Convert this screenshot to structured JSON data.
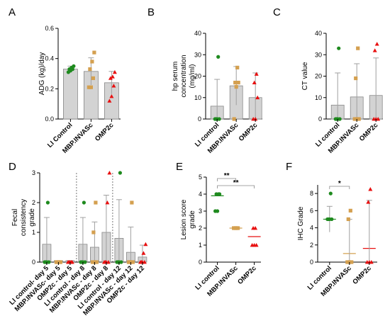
{
  "colors": {
    "green": "#1e8a1e",
    "orange": "#d4a050",
    "red": "#e81010",
    "bar": "#d3d3d3",
    "axis": "#000000",
    "error": "#a0a0a0"
  },
  "chart_data": [
    {
      "panel": "A",
      "type": "bar",
      "ylabel": "ADG (kg)/day",
      "ylim": [
        0,
        0.6
      ],
      "yticks": [
        0,
        0.2,
        0.4,
        0.6
      ],
      "categories": [
        "LI Control",
        "MBP.INVASc",
        "OMP2c"
      ],
      "bars": [
        {
          "mean": 0.33,
          "sd": 0.02
        },
        {
          "mean": 0.315,
          "sd": 0.09
        },
        {
          "mean": 0.24,
          "sd": 0.075
        }
      ],
      "points": [
        [
          0.31,
          0.32,
          0.33,
          0.33,
          0.34,
          0.35
        ],
        [
          0.21,
          0.21,
          0.27,
          0.33,
          0.38,
          0.44
        ],
        [
          0.12,
          0.15,
          0.22,
          0.27,
          0.28,
          0.31
        ]
      ]
    },
    {
      "panel": "B",
      "type": "bar",
      "ylabel": "hp serum concentration (mg/ml)",
      "ylim": [
        0,
        40
      ],
      "yticks": [
        0,
        10,
        20,
        30,
        40
      ],
      "categories": [
        "LI control",
        "MBP.INVASc",
        "OMP2c"
      ],
      "bars": [
        {
          "mean": 6,
          "sd": 12.5
        },
        {
          "mean": 15.5,
          "sd": 9
        },
        {
          "mean": 10,
          "sd": 11.5
        }
      ],
      "points": [
        [
          0,
          0,
          0,
          0,
          29
        ],
        [
          0,
          15,
          17,
          17,
          24
        ],
        [
          0,
          0,
          10,
          17,
          21
        ]
      ]
    },
    {
      "panel": "C",
      "type": "bar",
      "ylabel": "CT value",
      "ylim": [
        0,
        40
      ],
      "yticks": [
        0,
        10,
        20,
        30,
        40
      ],
      "categories": [
        "LI control",
        "MBP.INVASc",
        "OMP2c"
      ],
      "bars": [
        {
          "mean": 6.5,
          "sd": 15
        },
        {
          "mean": 10.3,
          "sd": 15.5
        },
        {
          "mean": 11,
          "sd": 17.5
        }
      ],
      "points": [
        [
          0,
          0,
          0,
          0,
          33
        ],
        [
          0,
          0,
          0,
          19,
          33
        ],
        [
          0,
          0,
          0,
          32,
          35
        ]
      ]
    },
    {
      "panel": "D",
      "type": "bar",
      "ylabel": "Fecal consistency grade",
      "ylim": [
        0,
        3
      ],
      "yticks": [
        0,
        1,
        2,
        3
      ],
      "categories": [
        "LI control- day 5",
        "MBP.INVASc- day 5",
        "OMP2c - day 5",
        "LI control - day 8",
        "MBP.INVASc - day 8",
        "OMP2c - day 8",
        "LI control - day 12",
        "MBP.INVASc - day 12",
        "OMP2c - day 12"
      ],
      "bars": [
        {
          "mean": 0.6,
          "sd": 0.9
        },
        {
          "mean": 0.05,
          "sd": 0
        },
        {
          "mean": 0.05,
          "sd": 0
        },
        {
          "mean": 0.6,
          "sd": 0.9
        },
        {
          "mean": 0.5,
          "sd": 0.85
        },
        {
          "mean": 1.0,
          "sd": 1.25
        },
        {
          "mean": 0.8,
          "sd": 1.3
        },
        {
          "mean": 0.33,
          "sd": 0.85
        },
        {
          "mean": 0.17,
          "sd": 0.4
        }
      ],
      "points": [
        [
          0,
          0,
          0,
          0,
          2
        ],
        [
          0,
          0,
          0,
          0,
          0
        ],
        [
          0,
          0,
          0,
          0,
          0
        ],
        [
          0,
          0,
          0,
          0,
          2
        ],
        [
          0,
          0,
          0,
          1,
          2
        ],
        [
          0,
          0,
          0,
          0,
          2,
          3
        ],
        [
          0,
          0,
          0,
          0,
          3
        ],
        [
          0,
          0,
          0,
          0,
          2
        ],
        [
          0,
          0,
          0,
          0,
          0.3,
          0.6
        ]
      ]
    },
    {
      "panel": "E",
      "type": "bar",
      "ylabel": "Lesion score grade",
      "ylim": [
        0,
        5
      ],
      "yticks": [
        0,
        1,
        2,
        3,
        4,
        5
      ],
      "categories": [
        "LI control",
        "MBP.INVASc",
        "OMP2c"
      ],
      "bars": [
        {
          "mean": 3.9,
          "sd": 0
        },
        {
          "mean": 2.0,
          "sd": 0
        },
        {
          "mean": 1.5,
          "sd": 0
        }
      ],
      "points": [
        [
          3,
          3,
          4,
          4,
          4
        ],
        [
          2,
          2,
          2,
          2,
          2
        ],
        [
          1,
          1,
          1,
          2,
          2
        ]
      ],
      "significance": [
        {
          "from": 0,
          "to": 1,
          "label": "**"
        },
        {
          "from": 0,
          "to": 2,
          "label": "**"
        }
      ]
    },
    {
      "panel": "F",
      "type": "bar",
      "ylabel": "IHC Grade",
      "ylim": [
        0,
        9
      ],
      "yticks": [
        0,
        2,
        4,
        6,
        8
      ],
      "categories": [
        "LI control",
        "MBP.INVASc",
        "OMP2c"
      ],
      "bars": [
        {
          "mean": 5,
          "sd": 1.5
        },
        {
          "mean": 1.0,
          "sd": 4.0
        },
        {
          "mean": 1.6,
          "sd": 5.6
        }
      ],
      "points": [
        [
          5,
          5,
          5,
          5,
          8
        ],
        [
          0,
          0,
          0,
          5,
          6
        ],
        [
          0,
          0,
          0,
          7,
          8.5
        ]
      ],
      "significance": [
        {
          "from": 0,
          "to": 1,
          "label": "*"
        }
      ]
    }
  ]
}
